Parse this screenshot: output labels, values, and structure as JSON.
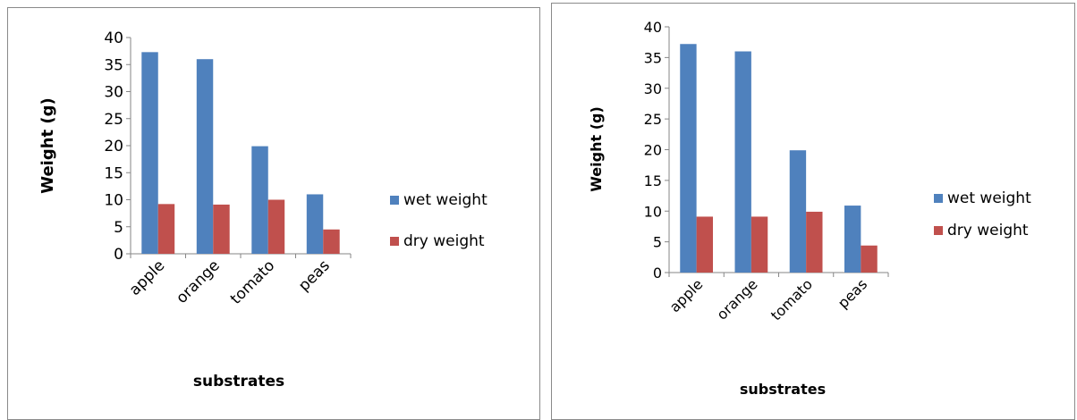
{
  "chart_data": [
    {
      "type": "bar",
      "categories": [
        "apple",
        "orange",
        "tomato",
        "peas"
      ],
      "series": [
        {
          "name": "wet weight",
          "values": [
            37.3,
            36.0,
            19.9,
            11.0
          ],
          "color": "#4f81bd"
        },
        {
          "name": "dry weight",
          "values": [
            9.2,
            9.1,
            10.0,
            4.5
          ],
          "color": "#c0504d"
        }
      ],
      "title": "",
      "xlabel": "substrates",
      "ylabel": "Weight (g)",
      "ylim": [
        0,
        40
      ],
      "yticks": [
        0,
        5,
        10,
        15,
        20,
        25,
        30,
        35,
        40
      ],
      "grid": false,
      "legend": "right"
    },
    {
      "type": "bar",
      "categories": [
        "apple",
        "orange",
        "tomato",
        "peas"
      ],
      "series": [
        {
          "name": "wet weight",
          "values": [
            37.2,
            36.0,
            19.9,
            10.9
          ],
          "color": "#4f81bd"
        },
        {
          "name": "dry weight",
          "values": [
            9.1,
            9.1,
            9.9,
            4.4
          ],
          "color": "#c0504d"
        }
      ],
      "title": "",
      "xlabel": "substrates",
      "ylabel": "Weight (g)",
      "ylim": [
        0,
        40
      ],
      "yticks": [
        0,
        5,
        10,
        15,
        20,
        25,
        30,
        35,
        40
      ],
      "grid": false,
      "legend": "right"
    }
  ]
}
